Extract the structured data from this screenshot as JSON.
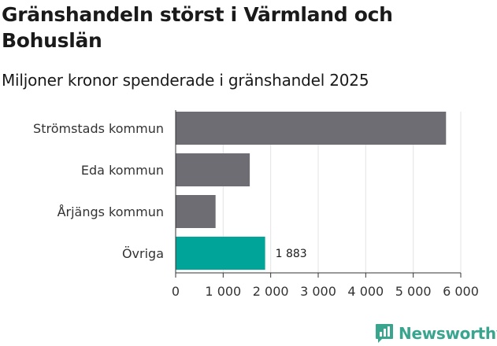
{
  "colors": {
    "bar_default": "#6e6d73",
    "bar_highlight": "#00a498",
    "brand": "#3aa58f"
  },
  "brand": {
    "name": "Newsworthy",
    "icon": "bar-chart-speech-icon"
  },
  "chart_data": {
    "type": "bar",
    "orientation": "horizontal",
    "title": "Gränshandeln störst i Värmland och Bohuslän",
    "subtitle": "Miljoner kronor spenderade i gränshandel 2025",
    "categories": [
      "Strömstads kommun",
      "Eda kommun",
      "Årjängs kommun",
      "Övriga"
    ],
    "values": [
      5690,
      1560,
      840,
      1883
    ],
    "highlight_index": 3,
    "data_labels": {
      "3": "1 883"
    },
    "xlim": [
      0,
      6000
    ],
    "xticks": [
      0,
      1000,
      2000,
      3000,
      4000,
      5000,
      6000
    ],
    "xtick_labels": [
      "0",
      "1 000",
      "2 000",
      "3 000",
      "4 000",
      "5 000",
      "6 000"
    ],
    "xlabel": "",
    "ylabel": "",
    "grid": "vertical"
  }
}
